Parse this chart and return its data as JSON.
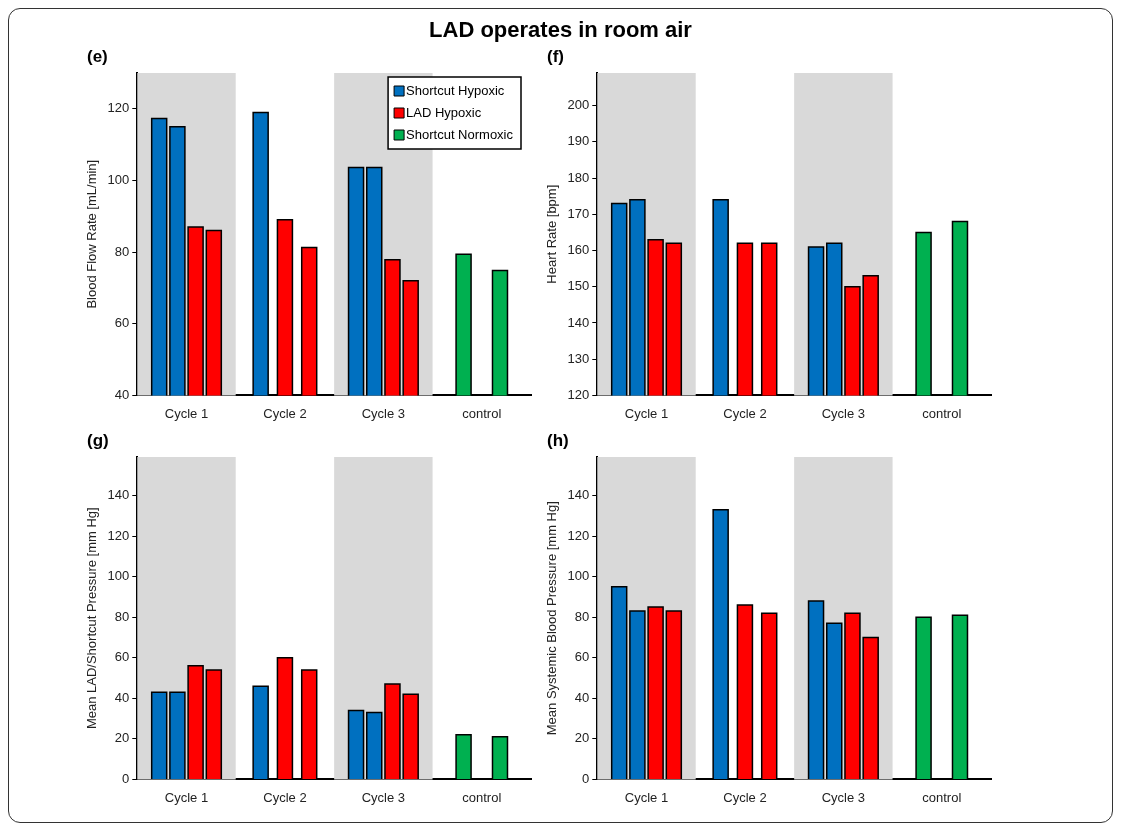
{
  "chart_data": [
    {
      "type": "bar",
      "title": "LAD operates in room air",
      "subtitle": "(e)",
      "ylabel": "Blood Flow Rate [mL/min]",
      "categories": [
        "Cycle 1",
        "Cycle 2",
        "Cycle 3",
        "control"
      ],
      "ylim": [
        40,
        130
      ],
      "yticks": [
        40,
        60,
        80,
        100,
        120
      ],
      "legend": "top right",
      "bands": [
        {
          "axis": "x",
          "from": "Cycle 1",
          "to": "Cycle 1",
          "color": "#d9d9d9"
        },
        {
          "axis": "x",
          "from": "Cycle 3",
          "to": "Cycle 3",
          "color": "#d9d9d9"
        }
      ],
      "series": [
        {
          "name": "Shortcut Hypoxic",
          "color": "#0070c0",
          "values": [
            117.3,
            119,
            103.6,
            null
          ]
        },
        {
          "color": "#0070c0",
          "values": [
            115,
            null,
            103.6,
            null
          ]
        },
        {
          "name": "LAD Hypoxic",
          "color": "#ff0000",
          "values": [
            87,
            89,
            77.9,
            null
          ]
        },
        {
          "color": "#ff0000",
          "values": [
            86,
            81.3,
            72,
            null
          ]
        },
        {
          "name": "Shortcut Normoxic",
          "color": "#00b050",
          "values": [
            null,
            null,
            null,
            79.4
          ]
        },
        {
          "color": "#00b050",
          "values": [
            null,
            null,
            null,
            74.9
          ]
        }
      ]
    },
    {
      "type": "bar",
      "subtitle": "(f)",
      "ylabel": "Heart Rate [bpm]",
      "categories": [
        "Cycle 1",
        "Cycle 2",
        "Cycle 3",
        "control"
      ],
      "ylim": [
        120,
        209
      ],
      "yticks": [
        120,
        130,
        140,
        150,
        160,
        170,
        180,
        190,
        200
      ],
      "bands": [
        {
          "axis": "x",
          "from": "Cycle 1",
          "to": "Cycle 1",
          "color": "#d9d9d9"
        },
        {
          "axis": "x",
          "from": "Cycle 3",
          "to": "Cycle 3",
          "color": "#d9d9d9"
        }
      ],
      "series": [
        {
          "color": "#0070c0",
          "values": [
            173,
            174,
            161,
            null
          ]
        },
        {
          "color": "#0070c0",
          "values": [
            174,
            null,
            162,
            null
          ]
        },
        {
          "color": "#ff0000",
          "values": [
            163,
            162,
            150,
            null
          ]
        },
        {
          "color": "#ff0000",
          "values": [
            162,
            162,
            153,
            null
          ]
        },
        {
          "color": "#00b050",
          "values": [
            null,
            null,
            null,
            165
          ]
        },
        {
          "color": "#00b050",
          "values": [
            null,
            null,
            null,
            168
          ]
        }
      ]
    },
    {
      "type": "bar",
      "subtitle": "(g)",
      "ylabel": "Mean LAD/Shortcut Pressure [mm Hg]",
      "categories": [
        "Cycle 1",
        "Cycle 2",
        "Cycle 3",
        "control"
      ],
      "ylim": [
        0,
        159
      ],
      "yticks": [
        0,
        20,
        40,
        60,
        80,
        100,
        120,
        140
      ],
      "bands": [
        {
          "axis": "x",
          "from": "Cycle 1",
          "to": "Cycle 1",
          "color": "#d9d9d9"
        },
        {
          "axis": "x",
          "from": "Cycle 3",
          "to": "Cycle 3",
          "color": "#d9d9d9"
        }
      ],
      "series": [
        {
          "color": "#0070c0",
          "values": [
            43,
            46,
            34,
            null
          ]
        },
        {
          "color": "#0070c0",
          "values": [
            43,
            null,
            33,
            null
          ]
        },
        {
          "color": "#ff0000",
          "values": [
            56,
            60,
            47,
            null
          ]
        },
        {
          "color": "#ff0000",
          "values": [
            54,
            54,
            42,
            null
          ]
        },
        {
          "color": "#00b050",
          "values": [
            null,
            null,
            null,
            22
          ]
        },
        {
          "color": "#00b050",
          "values": [
            null,
            null,
            null,
            21
          ]
        }
      ]
    },
    {
      "type": "bar",
      "subtitle": "(h)",
      "ylabel": "Mean Systemic Blood Pressure [mm Hg]",
      "categories": [
        "Cycle 1",
        "Cycle 2",
        "Cycle 3",
        "control"
      ],
      "ylim": [
        0,
        159
      ],
      "yticks": [
        0,
        20,
        40,
        60,
        80,
        100,
        120,
        140
      ],
      "bands": [
        {
          "axis": "x",
          "from": "Cycle 1",
          "to": "Cycle 1",
          "color": "#d9d9d9"
        },
        {
          "axis": "x",
          "from": "Cycle 3",
          "to": "Cycle 3",
          "color": "#d9d9d9"
        }
      ],
      "series": [
        {
          "color": "#0070c0",
          "values": [
            95,
            133,
            88,
            null
          ]
        },
        {
          "color": "#0070c0",
          "values": [
            83,
            null,
            77,
            null
          ]
        },
        {
          "color": "#ff0000",
          "values": [
            85,
            86,
            82,
            null
          ]
        },
        {
          "color": "#ff0000",
          "values": [
            83,
            82,
            70,
            null
          ]
        },
        {
          "color": "#00b050",
          "values": [
            null,
            null,
            null,
            80
          ]
        },
        {
          "color": "#00b050",
          "values": [
            null,
            null,
            null,
            81
          ]
        }
      ]
    }
  ]
}
